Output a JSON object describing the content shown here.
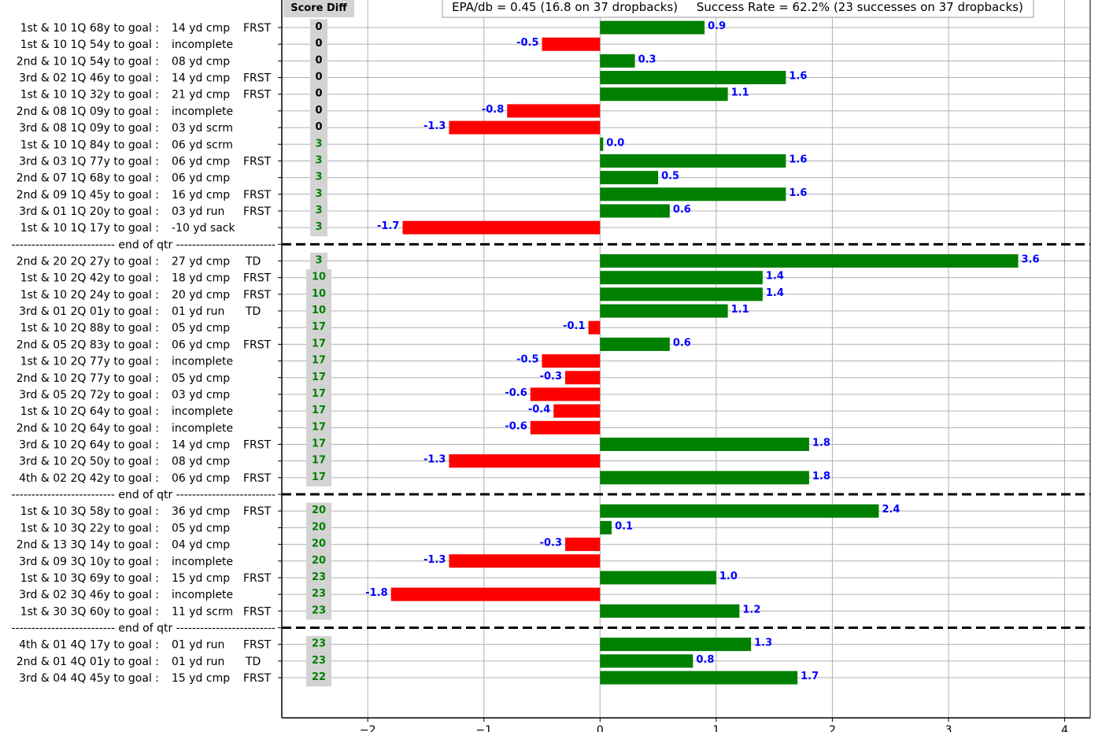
{
  "chart_data": {
    "type": "bar",
    "orientation": "horizontal",
    "title": "EPA/db = 0.45 (16.8 on 37 dropbacks)     Success Rate = 62.2% (23 successes on 37 dropbacks)",
    "score_header": "Score Diff",
    "separator_label": "-------------------------- end of qtr -------------------------",
    "xlim": [
      -2.74,
      4.22
    ],
    "xticks": [
      -2,
      -1,
      0,
      1,
      2,
      3,
      4
    ],
    "xtick_labels": [
      "−2",
      "−1",
      "0",
      "1",
      "2",
      "3",
      "4"
    ],
    "grid": true,
    "colors": {
      "positive": "#008000",
      "negative": "#ff0000",
      "value_label": "#0000ff",
      "score_zero": "#000000",
      "score_pos": "#008000",
      "score_bg": "#d3d3d3"
    },
    "rows": [
      {
        "situation": "1st & 10  1Q 68y to goal :",
        "result": "14 yd cmp",
        "flag": "FRST",
        "score": "0",
        "epa": 0.9
      },
      {
        "situation": "1st & 10  1Q 54y to goal :",
        "result": "incomplete",
        "flag": "",
        "score": "0",
        "epa": -0.5
      },
      {
        "situation": "2nd & 10  1Q 54y to goal :",
        "result": "08 yd cmp",
        "flag": "",
        "score": "0",
        "epa": 0.3
      },
      {
        "situation": "3rd & 02  1Q 46y to goal :",
        "result": "14 yd cmp",
        "flag": "FRST",
        "score": "0",
        "epa": 1.6
      },
      {
        "situation": "1st & 10  1Q 32y to goal :",
        "result": "21 yd cmp",
        "flag": "FRST",
        "score": "0",
        "epa": 1.1
      },
      {
        "situation": "2nd & 08  1Q 09y to goal :",
        "result": "incomplete",
        "flag": "",
        "score": "0",
        "epa": -0.8
      },
      {
        "situation": "3rd & 08  1Q 09y to goal :",
        "result": "03 yd scrm",
        "flag": "",
        "score": "0",
        "epa": -1.3
      },
      {
        "situation": "1st & 10  1Q 84y to goal :",
        "result": "06 yd scrm",
        "flag": "",
        "score": "3",
        "epa": 0.0
      },
      {
        "situation": "3rd & 03  1Q 77y to goal :",
        "result": "06 yd cmp",
        "flag": "FRST",
        "score": "3",
        "epa": 1.6
      },
      {
        "situation": "2nd & 07  1Q 68y to goal :",
        "result": "06 yd cmp",
        "flag": "",
        "score": "3",
        "epa": 0.5
      },
      {
        "situation": "2nd & 09  1Q 45y to goal :",
        "result": "16 yd cmp",
        "flag": "FRST",
        "score": "3",
        "epa": 1.6
      },
      {
        "situation": "3rd & 01  1Q 20y to goal :",
        "result": "03 yd  run",
        "flag": "FRST",
        "score": "3",
        "epa": 0.6
      },
      {
        "situation": "1st & 10  1Q 17y to goal :",
        "result": "-10 yd sack",
        "flag": "",
        "score": "3",
        "epa": -1.7
      },
      {
        "separator": true
      },
      {
        "situation": "2nd & 20  2Q 27y to goal :",
        "result": "27 yd cmp",
        "flag": "TD",
        "score": "3",
        "epa": 3.6
      },
      {
        "situation": "1st & 10  2Q 42y to goal :",
        "result": "18 yd cmp",
        "flag": "FRST",
        "score": "10",
        "epa": 1.4
      },
      {
        "situation": "1st & 10  2Q 24y to goal :",
        "result": "20 yd cmp",
        "flag": "FRST",
        "score": "10",
        "epa": 1.4
      },
      {
        "situation": "3rd & 01  2Q 01y to goal :",
        "result": "01 yd  run",
        "flag": "TD",
        "score": "10",
        "epa": 1.1
      },
      {
        "situation": "1st & 10  2Q 88y to goal :",
        "result": "05 yd cmp",
        "flag": "",
        "score": "17",
        "epa": -0.1
      },
      {
        "situation": "2nd & 05  2Q 83y to goal :",
        "result": "06 yd cmp",
        "flag": "FRST",
        "score": "17",
        "epa": 0.6
      },
      {
        "situation": "1st & 10  2Q 77y to goal :",
        "result": "incomplete",
        "flag": "",
        "score": "17",
        "epa": -0.5
      },
      {
        "situation": "2nd & 10  2Q 77y to goal :",
        "result": "05 yd cmp",
        "flag": "",
        "score": "17",
        "epa": -0.3
      },
      {
        "situation": "3rd & 05  2Q 72y to goal :",
        "result": "03 yd cmp",
        "flag": "",
        "score": "17",
        "epa": -0.6
      },
      {
        "situation": "1st & 10  2Q 64y to goal :",
        "result": "incomplete",
        "flag": "",
        "score": "17",
        "epa": -0.4
      },
      {
        "situation": "2nd & 10  2Q 64y to goal :",
        "result": "incomplete",
        "flag": "",
        "score": "17",
        "epa": -0.6
      },
      {
        "situation": "3rd & 10  2Q 64y to goal :",
        "result": "14 yd cmp",
        "flag": "FRST",
        "score": "17",
        "epa": 1.8
      },
      {
        "situation": "3rd & 10  2Q 50y to goal :",
        "result": "08 yd cmp",
        "flag": "",
        "score": "17",
        "epa": -1.3
      },
      {
        "situation": "4th & 02  2Q 42y to goal :",
        "result": "06 yd cmp",
        "flag": "FRST",
        "score": "17",
        "epa": 1.8
      },
      {
        "separator": true
      },
      {
        "situation": "1st & 10  3Q 58y to goal :",
        "result": "36 yd cmp",
        "flag": "FRST",
        "score": "20",
        "epa": 2.4
      },
      {
        "situation": "1st & 10  3Q 22y to goal :",
        "result": "05 yd cmp",
        "flag": "",
        "score": "20",
        "epa": 0.1
      },
      {
        "situation": "2nd & 13  3Q 14y to goal :",
        "result": "04 yd cmp",
        "flag": "",
        "score": "20",
        "epa": -0.3
      },
      {
        "situation": "3rd & 09  3Q 10y to goal :",
        "result": "incomplete",
        "flag": "",
        "score": "20",
        "epa": -1.3
      },
      {
        "situation": "1st & 10  3Q 69y to goal :",
        "result": "15 yd cmp",
        "flag": "FRST",
        "score": "23",
        "epa": 1.0
      },
      {
        "situation": "3rd & 02  3Q 46y to goal :",
        "result": "incomplete",
        "flag": "",
        "score": "23",
        "epa": -1.8
      },
      {
        "situation": "1st & 30  3Q 60y to goal :",
        "result": "11 yd scrm",
        "flag": "FRST",
        "score": "23",
        "epa": 1.2
      },
      {
        "separator": true
      },
      {
        "situation": "4th & 01  4Q 17y to goal :",
        "result": "01 yd  run",
        "flag": "FRST",
        "score": "23",
        "epa": 1.3
      },
      {
        "situation": "2nd & 01  4Q 01y to goal :",
        "result": "01 yd  run",
        "flag": "TD",
        "score": "23",
        "epa": 0.8
      },
      {
        "situation": "3rd & 04  4Q 45y to goal :",
        "result": "15 yd cmp",
        "flag": "FRST",
        "score": "22",
        "epa": 1.7
      }
    ]
  }
}
